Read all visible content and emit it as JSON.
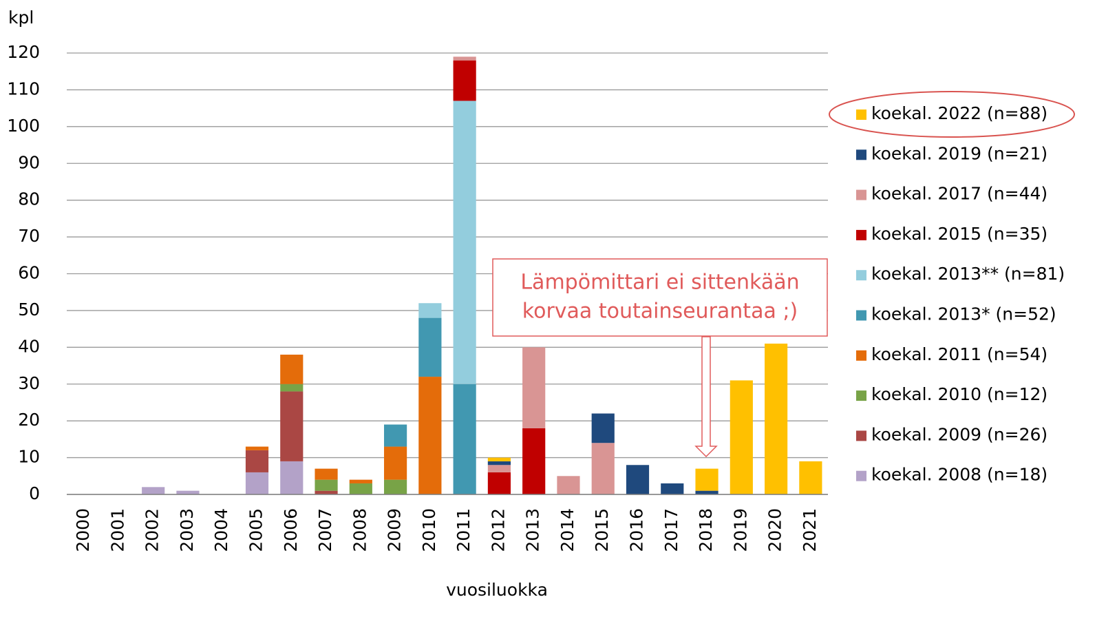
{
  "chart_data": {
    "type": "stacked_bar",
    "y_label": "kpl",
    "x_label": "vuosiluokka",
    "categories": [
      "2000",
      "2001",
      "2002",
      "2003",
      "2004",
      "2005",
      "2006",
      "2007",
      "2008",
      "2009",
      "2010",
      "2011",
      "2012",
      "2013",
      "2014",
      "2015",
      "2016",
      "2017",
      "2018",
      "2019",
      "2020",
      "2021"
    ],
    "series": [
      {
        "name": "koekal. 2008 (n=18)",
        "color": "#b3a2c8",
        "values": [
          0,
          0,
          2,
          1,
          0,
          6,
          9,
          0,
          0,
          0,
          0,
          0,
          0,
          0,
          0,
          0,
          0,
          0,
          0,
          0,
          0,
          0
        ]
      },
      {
        "name": "koekal. 2009 (n=26)",
        "color": "#aa4744",
        "values": [
          0,
          0,
          0,
          0,
          0,
          6,
          19,
          1,
          0,
          0,
          0,
          0,
          0,
          0,
          0,
          0,
          0,
          0,
          0,
          0,
          0,
          0
        ]
      },
      {
        "name": "koekal. 2010 (n=12)",
        "color": "#78a347",
        "values": [
          0,
          0,
          0,
          0,
          0,
          0,
          2,
          3,
          3,
          4,
          0,
          0,
          0,
          0,
          0,
          0,
          0,
          0,
          0,
          0,
          0,
          0
        ]
      },
      {
        "name": "koekal. 2011 (n=54)",
        "color": "#e46c0a",
        "values": [
          0,
          0,
          0,
          0,
          0,
          1,
          8,
          3,
          1,
          9,
          32,
          0,
          0,
          0,
          0,
          0,
          0,
          0,
          0,
          0,
          0,
          0
        ]
      },
      {
        "name": "koekal. 2013* (n=52)",
        "color": "#4198b1",
        "values": [
          0,
          0,
          0,
          0,
          0,
          0,
          0,
          0,
          0,
          6,
          16,
          30,
          0,
          0,
          0,
          0,
          0,
          0,
          0,
          0,
          0,
          0
        ]
      },
      {
        "name": "koekal. 2013** (n=81)",
        "color": "#93cddd",
        "values": [
          0,
          0,
          0,
          0,
          0,
          0,
          0,
          0,
          0,
          0,
          4,
          77,
          0,
          0,
          0,
          0,
          0,
          0,
          0,
          0,
          0,
          0
        ]
      },
      {
        "name": "koekal. 2015 (n=35)",
        "color": "#c00000",
        "values": [
          0,
          0,
          0,
          0,
          0,
          0,
          0,
          0,
          0,
          0,
          0,
          11,
          6,
          18,
          0,
          0,
          0,
          0,
          0,
          0,
          0,
          0
        ]
      },
      {
        "name": "koekal. 2017 (n=44)",
        "color": "#d99594",
        "values": [
          0,
          0,
          0,
          0,
          0,
          0,
          0,
          0,
          0,
          0,
          0,
          1,
          2,
          22,
          5,
          14,
          0,
          0,
          0,
          0,
          0,
          0
        ]
      },
      {
        "name": "koekal. 2019 (n=21)",
        "color": "#1f497d",
        "values": [
          0,
          0,
          0,
          0,
          0,
          0,
          0,
          0,
          0,
          0,
          0,
          0,
          1,
          0,
          0,
          8,
          8,
          3,
          1,
          0,
          0,
          0
        ]
      },
      {
        "name": "koekal. 2022 (n=88)",
        "color": "#ffc000",
        "values": [
          0,
          0,
          0,
          0,
          0,
          0,
          0,
          0,
          0,
          0,
          0,
          0,
          1,
          0,
          0,
          0,
          0,
          0,
          6,
          31,
          41,
          9
        ]
      }
    ],
    "ylim": [
      0,
      120
    ],
    "yticks": [
      0,
      10,
      20,
      30,
      40,
      50,
      60,
      70,
      80,
      90,
      100,
      110,
      120
    ],
    "grid": true,
    "annotation": [
      "Lämpömittari ei sittenkään",
      "korvaa toutainseurantaa ;)"
    ]
  }
}
